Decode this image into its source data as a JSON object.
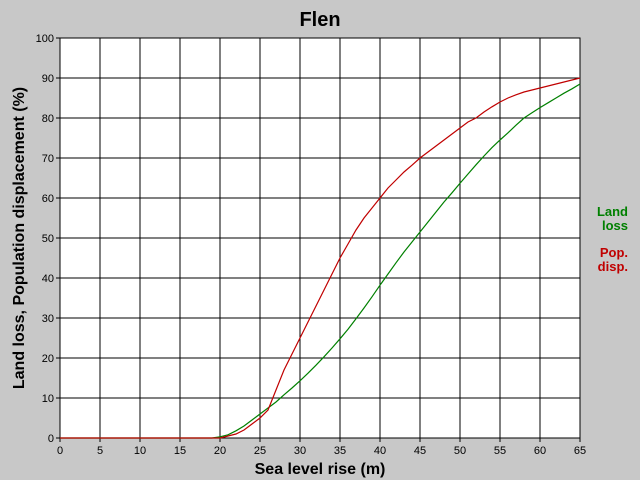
{
  "chart_data": {
    "type": "line",
    "title": "Flen",
    "xlabel": "Sea level rise (m)",
    "ylabel": "Land loss, Population displacement (%)",
    "xlim": [
      0,
      65
    ],
    "ylim": [
      0,
      100
    ],
    "xticks": [
      0,
      5,
      10,
      15,
      20,
      25,
      30,
      35,
      40,
      45,
      50,
      55,
      60,
      65
    ],
    "yticks": [
      0,
      10,
      20,
      30,
      40,
      50,
      60,
      70,
      80,
      90,
      100
    ],
    "grid": true,
    "legend_placement": "right",
    "series": [
      {
        "name": "Land loss",
        "legend_lines": [
          "Land",
          "loss"
        ],
        "color": "#008000",
        "x": [
          0,
          19,
          20,
          21,
          22,
          23,
          24,
          25,
          26,
          27,
          28,
          29,
          30,
          31,
          32,
          33,
          34,
          35,
          36,
          37,
          38,
          39,
          40,
          41,
          42,
          43,
          44,
          45,
          46,
          47,
          48,
          49,
          50,
          51,
          52,
          53,
          54,
          55,
          56,
          57,
          58,
          59,
          60,
          61,
          62,
          63,
          64,
          65
        ],
        "y": [
          0,
          0,
          0.3,
          0.8,
          1.8,
          3.0,
          4.5,
          6.0,
          7.5,
          9.0,
          10.8,
          12.5,
          14.3,
          16.2,
          18.2,
          20.3,
          22.5,
          24.8,
          27.2,
          29.8,
          32.5,
          35.3,
          38.2,
          41.0,
          43.8,
          46.5,
          49.0,
          51.5,
          54.0,
          56.5,
          59.0,
          61.3,
          63.7,
          66.0,
          68.3,
          70.5,
          72.6,
          74.5,
          76.3,
          78.2,
          80.0,
          81.3,
          82.6,
          83.8,
          85.0,
          86.2,
          87.3,
          88.5
        ]
      },
      {
        "name": "Pop. disp.",
        "legend_lines": [
          "Pop.",
          "disp."
        ],
        "color": "#c00000",
        "x": [
          0,
          19,
          20,
          21,
          22,
          23,
          24,
          25,
          26,
          27,
          28,
          29,
          30,
          31,
          32,
          33,
          34,
          35,
          36,
          37,
          38,
          39,
          40,
          41,
          42,
          43,
          44,
          45,
          46,
          47,
          48,
          49,
          50,
          51,
          52,
          53,
          54,
          55,
          56,
          57,
          58,
          59,
          60,
          61,
          62,
          63,
          64,
          65
        ],
        "y": [
          0,
          0,
          0,
          0.5,
          1.0,
          2.0,
          3.5,
          5.0,
          7.0,
          12.0,
          17.0,
          21.0,
          25.0,
          29.0,
          33.0,
          37.0,
          41.0,
          45.0,
          48.5,
          52.0,
          55.0,
          57.5,
          60.0,
          62.5,
          64.5,
          66.5,
          68.2,
          70.0,
          71.5,
          73.0,
          74.5,
          76.0,
          77.5,
          79.0,
          80.0,
          81.5,
          82.8,
          84.0,
          85.0,
          85.8,
          86.5,
          87.0,
          87.5,
          88.0,
          88.5,
          89.0,
          89.5,
          90.0
        ]
      }
    ]
  }
}
